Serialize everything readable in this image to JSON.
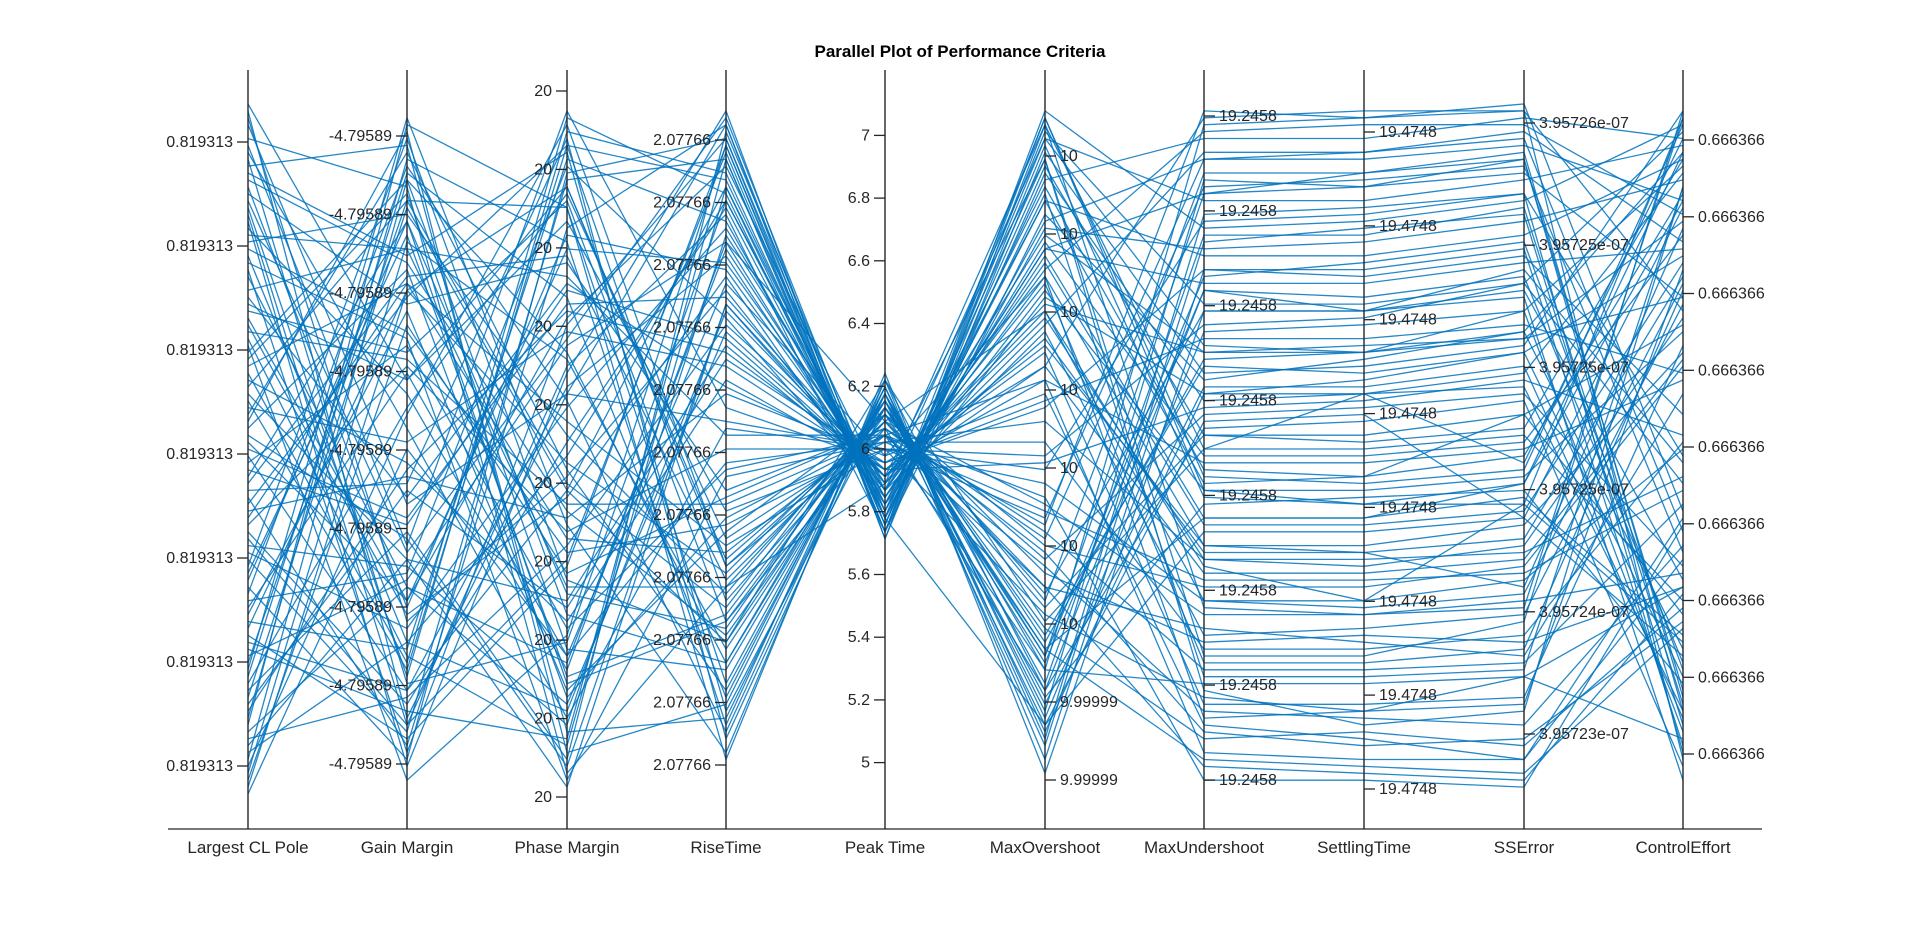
{
  "chart_data": {
    "type": "parallel-coordinates",
    "title": "Parallel Plot of Performance Criteria",
    "line_color": "#0072BD",
    "axis_color": "#262626",
    "axes": [
      {
        "name": "Largest CL Pole",
        "tick_side": "left",
        "ticks": [
          "0.819313",
          "0.819313",
          "0.819313",
          "0.819313",
          "0.819313",
          "0.819313",
          "0.819313"
        ]
      },
      {
        "name": "Gain Margin",
        "tick_side": "left",
        "ticks": [
          "-4.79589",
          "-4.79589",
          "-4.79589",
          "-4.79589",
          "-4.79589",
          "-4.79589",
          "-4.79589",
          "-4.79589",
          "-4.79589"
        ]
      },
      {
        "name": "Phase Margin",
        "tick_side": "left",
        "ticks": [
          "20",
          "20",
          "20",
          "20",
          "20",
          "20",
          "20",
          "20",
          "20",
          "20"
        ]
      },
      {
        "name": "RiseTime",
        "tick_side": "left",
        "ticks": [
          "2.07766",
          "2.07766",
          "2.07766",
          "2.07766",
          "2.07766",
          "2.07766",
          "2.07766",
          "2.07766",
          "2.07766",
          "2.07766",
          "2.07766"
        ]
      },
      {
        "name": "Peak Time",
        "tick_side": "left",
        "ticks": [
          "7",
          "6.8",
          "6.6",
          "6.4",
          "6.2",
          "6",
          "5.8",
          "5.6",
          "5.4",
          "5.2",
          "5"
        ]
      },
      {
        "name": "MaxOvershoot",
        "tick_side": "right",
        "ticks": [
          "10",
          "10",
          "10",
          "10",
          "10",
          "10",
          "10",
          "9.99999",
          "9.99999"
        ]
      },
      {
        "name": "MaxUndershoot",
        "tick_side": "right",
        "ticks": [
          "19.2458",
          "19.2458",
          "19.2458",
          "19.2458",
          "19.2458",
          "19.2458",
          "19.2458",
          "19.2458"
        ]
      },
      {
        "name": "SettlingTime",
        "tick_side": "right",
        "ticks": [
          "19.4748",
          "19.4748",
          "19.4748",
          "19.4748",
          "19.4748",
          "19.4748",
          "19.4748",
          "19.4748"
        ]
      },
      {
        "name": "SSError",
        "tick_side": "right",
        "ticks": [
          "3.95726e-07",
          "3.95725e-07",
          "3.95725e-07",
          "3.95725e-07",
          "3.95724e-07",
          "3.95723e-07"
        ]
      },
      {
        "name": "ControlEffort",
        "tick_side": "right",
        "ticks": [
          "0.666366",
          "0.666366",
          "0.666366",
          "0.666366",
          "0.666366",
          "0.666366",
          "0.666366",
          "0.666366",
          "0.666366"
        ]
      }
    ],
    "peak_time_range": [
      4.9,
      7.1
    ],
    "lines_normalized": [
      [
        1.0,
        0.6,
        0.83,
        0.41,
        0.5,
        0.26,
        0.14,
        0.12,
        0.17,
        0.3
      ],
      [
        0.95,
        0.88,
        0.03,
        0.3,
        0.45,
        0.97,
        0.5,
        0.58,
        0.48,
        0.95
      ],
      [
        0.9,
        0.78,
        0.93,
        0.12,
        0.56,
        0.2,
        0.87,
        0.9,
        0.92,
        0.15
      ],
      [
        0.86,
        0.35,
        0.66,
        0.98,
        0.4,
        0.1,
        0.54,
        0.55,
        0.4,
        0.85
      ],
      [
        0.82,
        0.58,
        0.18,
        0.8,
        0.54,
        0.7,
        0.33,
        0.28,
        0.42,
        0.22
      ],
      [
        0.78,
        0.22,
        0.12,
        0.7,
        0.46,
        0.92,
        0.15,
        0.1,
        0.12,
        0.88
      ],
      [
        0.73,
        0.79,
        0.75,
        0.52,
        0.52,
        0.18,
        0.97,
        0.98,
        0.99,
        0.05
      ],
      [
        0.7,
        0.64,
        0.86,
        0.25,
        0.53,
        0.15,
        0.73,
        0.7,
        0.76,
        0.48
      ],
      [
        0.66,
        0.2,
        0.07,
        0.88,
        0.42,
        0.86,
        0.45,
        0.46,
        0.55,
        0.68
      ],
      [
        0.62,
        0.74,
        0.54,
        0.36,
        0.5,
        0.4,
        0.92,
        0.93,
        0.95,
        0.38
      ],
      [
        0.58,
        0.34,
        0.28,
        0.65,
        0.46,
        0.66,
        0.35,
        0.35,
        0.3,
        0.82
      ],
      [
        0.55,
        0.93,
        0.47,
        0.15,
        0.58,
        0.07,
        0.8,
        0.82,
        0.84,
        0.1
      ],
      [
        0.51,
        0.28,
        0.69,
        0.91,
        0.44,
        0.95,
        0.65,
        0.64,
        0.7,
        0.91
      ],
      [
        0.48,
        0.65,
        0.24,
        0.47,
        0.52,
        0.3,
        0.24,
        0.22,
        0.2,
        0.58
      ],
      [
        0.44,
        0.45,
        0.95,
        0.08,
        0.58,
        0.12,
        0.89,
        0.88,
        0.92,
        0.12
      ],
      [
        0.41,
        0.46,
        0.4,
        0.58,
        0.49,
        0.58,
        0.1,
        0.08,
        0.05,
        0.4
      ],
      [
        0.37,
        0.1,
        0.62,
        0.84,
        0.38,
        0.84,
        0.6,
        0.63,
        0.67,
        0.93
      ],
      [
        0.33,
        0.95,
        0.31,
        0.22,
        0.6,
        0.25,
        0.5,
        0.5,
        0.52,
        0.28
      ],
      [
        0.3,
        0.05,
        0.9,
        0.95,
        0.4,
        0.98,
        0.44,
        0.42,
        0.42,
        0.98
      ],
      [
        0.26,
        0.7,
        0.15,
        0.38,
        0.55,
        0.36,
        0.3,
        0.3,
        0.33,
        0.62
      ],
      [
        0.22,
        0.15,
        0.59,
        0.78,
        0.43,
        0.79,
        0.87,
        0.88,
        0.9,
        0.72
      ],
      [
        0.19,
        0.86,
        0.45,
        0.27,
        0.57,
        0.2,
        0.75,
        0.77,
        0.8,
        0.18
      ],
      [
        0.15,
        0.38,
        0.05,
        0.96,
        0.41,
        0.92,
        0.2,
        0.2,
        0.25,
        0.99
      ],
      [
        0.11,
        0.92,
        0.8,
        0.1,
        0.6,
        0.15,
        0.53,
        0.54,
        0.57,
        0.04
      ],
      [
        0.08,
        0.14,
        0.36,
        0.68,
        0.47,
        0.48,
        0.56,
        0.57,
        0.6,
        0.52
      ],
      [
        0.04,
        0.55,
        0.97,
        0.33,
        0.52,
        0.6,
        0.06,
        0.05,
        0.05,
        0.34
      ],
      [
        0.0,
        0.5,
        0.2,
        0.74,
        0.49,
        0.75,
        0.36,
        0.35,
        0.37,
        0.75
      ],
      [
        0.97,
        0.42,
        0.58,
        0.54,
        0.5,
        0.49,
        0.68,
        0.69,
        0.74,
        0.45
      ],
      [
        0.92,
        0.16,
        0.22,
        0.86,
        0.43,
        0.78,
        0.4,
        0.4,
        0.45,
        0.86
      ],
      [
        0.87,
        0.71,
        0.77,
        0.44,
        0.53,
        0.35,
        0.09,
        0.07,
        0.08,
        0.25
      ],
      [
        0.84,
        0.1,
        0.34,
        0.93,
        0.38,
        0.99,
        0.82,
        0.83,
        0.86,
        0.97
      ],
      [
        0.8,
        0.84,
        0.52,
        0.29,
        0.56,
        0.23,
        0.62,
        0.61,
        0.64,
        0.17
      ],
      [
        0.75,
        0.3,
        0.1,
        0.81,
        0.45,
        0.68,
        0.93,
        0.93,
        0.96,
        0.8
      ],
      [
        0.71,
        0.6,
        0.88,
        0.34,
        0.54,
        0.42,
        0.26,
        0.26,
        0.28,
        0.32
      ],
      [
        0.68,
        0.26,
        0.43,
        0.75,
        0.42,
        0.72,
        0.58,
        0.6,
        0.64,
        0.78
      ],
      [
        0.64,
        0.89,
        0.64,
        0.19,
        0.58,
        0.18,
        0.16,
        0.16,
        0.17,
        0.08
      ],
      [
        0.6,
        0.48,
        0.25,
        0.6,
        0.47,
        0.6,
        0.48,
        0.48,
        0.5,
        0.6
      ],
      [
        0.57,
        0.18,
        0.94,
        0.89,
        0.41,
        0.86,
        0.78,
        0.78,
        0.81,
        0.92
      ],
      [
        0.53,
        0.76,
        0.14,
        0.4,
        0.52,
        0.33,
        0.12,
        0.11,
        0.1,
        0.36
      ],
      [
        0.5,
        0.4,
        0.71,
        0.72,
        0.46,
        0.62,
        0.98,
        0.99,
        0.99,
        0.7
      ],
      [
        0.46,
        0.83,
        0.29,
        0.24,
        0.57,
        0.1,
        0.38,
        0.38,
        0.4,
        0.2
      ],
      [
        0.43,
        0.07,
        0.82,
        0.97,
        0.39,
        0.96,
        0.71,
        0.71,
        0.74,
        0.96
      ],
      [
        0.39,
        0.62,
        0.38,
        0.5,
        0.5,
        0.45,
        0.28,
        0.28,
        0.31,
        0.5
      ],
      [
        0.35,
        0.24,
        0.56,
        0.82,
        0.44,
        0.81,
        0.64,
        0.65,
        0.66,
        0.83
      ],
      [
        0.32,
        0.81,
        0.17,
        0.26,
        0.56,
        0.28,
        0.9,
        0.9,
        0.93,
        0.14
      ],
      [
        0.28,
        0.32,
        0.91,
        0.69,
        0.43,
        0.73,
        0.44,
        0.44,
        0.46,
        0.67
      ],
      [
        0.24,
        0.73,
        0.48,
        0.32,
        0.55,
        0.32,
        0.22,
        0.23,
        0.22,
        0.3
      ],
      [
        0.21,
        0.12,
        0.08,
        0.92,
        0.38,
        0.9,
        0.57,
        0.58,
        0.61,
        0.9
      ],
      [
        0.17,
        0.9,
        0.72,
        0.14,
        0.59,
        0.08,
        0.84,
        0.85,
        0.87,
        0.06
      ],
      [
        0.13,
        0.44,
        0.27,
        0.63,
        0.48,
        0.62,
        0.32,
        0.32,
        0.34,
        0.63
      ],
      [
        0.1,
        0.97,
        0.85,
        0.05,
        0.61,
        0.03,
        0.7,
        0.7,
        0.72,
        0.02
      ],
      [
        0.06,
        0.22,
        0.49,
        0.86,
        0.42,
        0.88,
        0.47,
        0.46,
        0.49,
        0.87
      ],
      [
        0.02,
        0.68,
        0.32,
        0.43,
        0.53,
        0.38,
        0.18,
        0.18,
        0.19,
        0.42
      ],
      [
        0.94,
        0.36,
        0.99,
        0.56,
        0.48,
        0.56,
        0.76,
        0.75,
        0.78,
        0.55
      ],
      [
        0.89,
        0.77,
        0.41,
        0.23,
        0.55,
        0.21,
        0.05,
        0.04,
        0.03,
        0.24
      ],
      [
        0.83,
        0.04,
        0.61,
        0.99,
        0.37,
        0.93,
        0.61,
        0.62,
        0.65,
        0.99
      ],
      [
        0.77,
        0.66,
        0.02,
        0.46,
        0.51,
        0.54,
        0.34,
        0.34,
        0.35,
        0.46
      ],
      [
        0.69,
        0.28,
        0.79,
        0.77,
        0.45,
        0.76,
        0.96,
        0.97,
        0.97,
        0.84
      ],
      [
        0.63,
        0.87,
        0.21,
        0.18,
        0.57,
        0.14,
        0.42,
        0.43,
        0.44,
        0.16
      ],
      [
        0.56,
        0.51,
        0.67,
        0.62,
        0.47,
        0.64,
        0.13,
        0.13,
        0.14,
        0.65
      ],
      [
        0.49,
        0.15,
        0.44,
        0.88,
        0.4,
        0.82,
        0.79,
        0.8,
        0.83,
        0.89
      ],
      [
        0.42,
        0.72,
        0.94,
        0.28,
        0.54,
        0.27,
        0.52,
        0.52,
        0.55,
        0.26
      ],
      [
        0.36,
        0.33,
        0.13,
        0.67,
        0.46,
        0.7,
        0.28,
        0.27,
        0.29,
        0.74
      ],
      [
        0.29,
        0.91,
        0.57,
        0.09,
        0.59,
        0.11,
        0.67,
        0.68,
        0.7,
        0.09
      ],
      [
        0.23,
        0.08,
        0.33,
        0.94,
        0.39,
        0.95,
        0.86,
        0.86,
        0.89,
        0.94
      ],
      [
        0.16,
        0.56,
        0.87,
        0.37,
        0.52,
        0.43,
        0.02,
        0.02,
        0.01,
        0.39
      ],
      [
        0.09,
        0.3,
        0.19,
        0.79,
        0.44,
        0.77,
        0.39,
        0.39,
        0.41,
        0.77
      ],
      [
        0.03,
        0.8,
        0.63,
        0.21,
        0.56,
        0.19,
        0.73,
        0.72,
        0.75,
        0.19
      ],
      [
        0.98,
        0.25,
        0.46,
        0.73,
        0.44,
        0.67,
        0.23,
        0.24,
        0.26,
        0.71
      ],
      [
        0.91,
        0.94,
        0.09,
        0.11,
        0.58,
        0.13,
        0.59,
        0.59,
        0.62,
        0.11
      ],
      [
        0.85,
        0.17,
        0.96,
        0.9,
        0.4,
        0.89,
        0.95,
        0.95,
        0.98,
        0.95
      ],
      [
        0.79,
        0.67,
        0.35,
        0.39,
        0.51,
        0.41,
        0.31,
        0.31,
        0.32,
        0.44
      ],
      [
        0.72,
        0.43,
        0.74,
        0.59,
        0.48,
        0.57,
        0.66,
        0.66,
        0.68,
        0.61
      ],
      [
        0.65,
        0.02,
        0.23,
        0.94,
        0.38,
        0.98,
        0.46,
        0.45,
        0.47,
        0.97
      ],
      [
        0.59,
        0.86,
        0.85,
        0.16,
        0.58,
        0.16,
        0.81,
        0.81,
        0.85,
        0.13
      ],
      [
        0.52,
        0.37,
        0.04,
        0.71,
        0.45,
        0.74,
        0.19,
        0.19,
        0.21,
        0.73
      ],
      [
        0.45,
        0.75,
        0.78,
        0.31,
        0.54,
        0.34,
        0.55,
        0.56,
        0.58,
        0.33
      ],
      [
        0.38,
        0.13,
        0.51,
        0.85,
        0.41,
        0.83,
        0.92,
        0.92,
        0.94,
        0.86
      ],
      [
        0.31,
        0.83,
        0.16,
        0.25,
        0.56,
        0.24,
        0.08,
        0.09,
        0.07,
        0.27
      ],
      [
        0.25,
        0.21,
        0.92,
        0.83,
        0.42,
        0.8,
        0.49,
        0.49,
        0.51,
        0.81
      ],
      [
        0.18,
        0.98,
        0.39,
        0.06,
        0.6,
        0.05,
        0.76,
        0.76,
        0.79,
        0.07
      ],
      [
        0.12,
        0.47,
        0.7,
        0.64,
        0.47,
        0.65,
        0.36,
        0.36,
        0.39,
        0.64
      ],
      [
        0.05,
        0.89,
        0.26,
        0.19,
        0.57,
        0.22,
        0.63,
        0.64,
        0.67,
        0.21
      ],
      [
        0.99,
        0.11,
        0.58,
        0.97,
        0.37,
        0.97,
        0.27,
        0.26,
        0.27,
        0.98
      ],
      [
        0.93,
        0.53,
        0.11,
        0.53,
        0.5,
        0.47,
        0.83,
        0.84,
        0.87,
        0.49
      ],
      [
        0.88,
        0.27,
        0.81,
        0.76,
        0.44,
        0.75,
        0.11,
        0.12,
        0.13,
        0.76
      ],
      [
        0.81,
        0.79,
        0.3,
        0.3,
        0.55,
        0.29,
        0.7,
        0.7,
        0.73,
        0.31
      ],
      [
        0.76,
        0.06,
        0.68,
        0.95,
        0.38,
        0.94,
        0.43,
        0.42,
        0.45,
        0.93
      ],
      [
        0.67,
        0.63,
        0.42,
        0.42,
        0.52,
        0.39,
        0.99,
        0.98,
        1.0,
        0.41
      ],
      [
        0.61,
        0.19,
        0.98,
        0.87,
        0.4,
        0.87,
        0.17,
        0.17,
        0.18,
        0.88
      ],
      [
        0.54,
        0.96,
        0.06,
        0.13,
        0.59,
        0.09,
        0.58,
        0.58,
        0.59,
        0.12
      ],
      [
        0.47,
        0.39,
        0.73,
        0.66,
        0.46,
        0.69,
        0.34,
        0.33,
        0.36,
        0.69
      ],
      [
        0.4,
        0.74,
        0.37,
        0.35,
        0.53,
        0.37,
        0.88,
        0.89,
        0.91,
        0.35
      ],
      [
        0.34,
        0.09,
        0.89,
        0.92,
        0.39,
        0.91,
        0.52,
        0.51,
        0.53,
        0.92
      ],
      [
        0.27,
        0.61,
        0.2,
        0.48,
        0.51,
        0.51,
        0.21,
        0.21,
        0.23,
        0.51
      ],
      [
        0.2,
        0.31,
        0.65,
        0.8,
        0.43,
        0.79,
        0.74,
        0.74,
        0.77,
        0.79
      ],
      [
        0.14,
        0.85,
        0.44,
        0.22,
        0.56,
        0.21,
        0.4,
        0.4,
        0.43,
        0.23
      ],
      [
        0.07,
        0.34,
        0.01,
        0.71,
        0.46,
        0.71,
        0.64,
        0.64,
        0.66,
        0.72
      ],
      [
        0.01,
        0.73,
        0.88,
        0.33,
        0.54,
        0.3,
        0.04,
        0.03,
        0.02,
        0.29
      ]
    ]
  }
}
